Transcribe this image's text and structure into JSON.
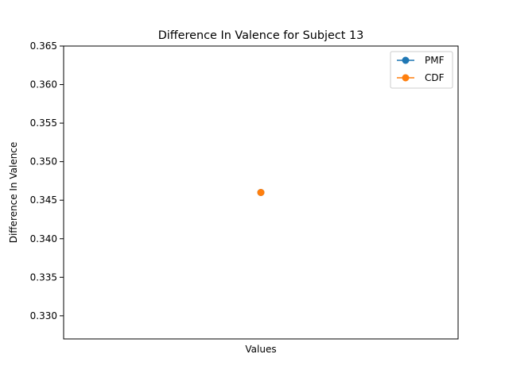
{
  "chart_data": {
    "type": "line",
    "title": "Difference In Valence for Subject 13",
    "xlabel": "Values",
    "ylabel": "Difference In Valence",
    "ylim": [
      0.327,
      0.365
    ],
    "yticks": [
      0.33,
      0.335,
      0.34,
      0.345,
      0.35,
      0.355,
      0.36,
      0.365
    ],
    "ytick_labels": [
      "0.330",
      "0.335",
      "0.340",
      "0.345",
      "0.350",
      "0.355",
      "0.360",
      "0.365"
    ],
    "xticks": [],
    "grid": false,
    "legend_position": "top-right",
    "series": [
      {
        "name": "PMF",
        "color": "#1f77b4",
        "marker": "circle",
        "points": [
          {
            "x": 0,
            "y": 0.346
          }
        ]
      },
      {
        "name": "CDF",
        "color": "#ff7f0e",
        "marker": "circle",
        "points": [
          {
            "x": 0,
            "y": 0.346
          }
        ]
      }
    ]
  }
}
